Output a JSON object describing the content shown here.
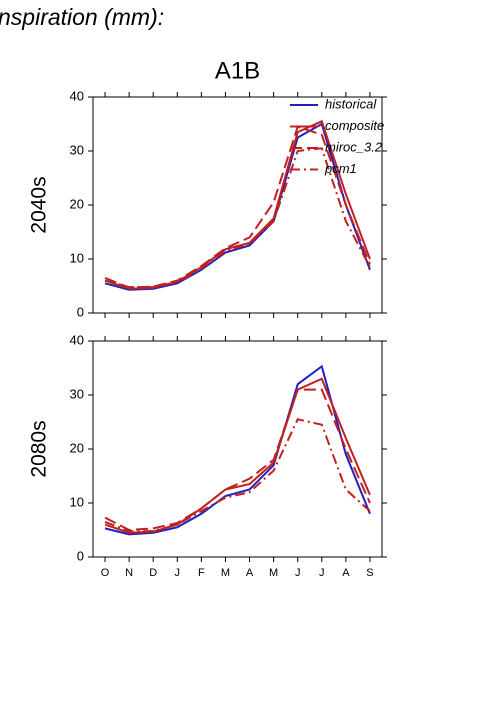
{
  "page_title": "nspiration (mm):",
  "chart_data": [
    {
      "type": "line",
      "title": "A1B",
      "ylabel": "2040s",
      "categories": [
        null,
        null,
        null,
        null,
        null,
        null,
        null,
        null,
        null,
        null,
        null,
        null
      ],
      "ylim": [
        0,
        40
      ],
      "yticks": [
        0,
        10,
        20,
        30,
        40
      ],
      "legend": "upper right",
      "series": [
        {
          "name": "historical",
          "color": "#2020c0",
          "linestyle": "solid",
          "values": [
            5.5,
            4.3,
            4.5,
            5.5,
            8,
            11.2,
            12.5,
            17,
            32.5,
            35,
            20,
            8
          ]
        },
        {
          "name": "composite",
          "color": "#c02020",
          "linestyle": "solid",
          "values": [
            6,
            4.5,
            4.7,
            5.8,
            8.5,
            11.8,
            13,
            17.5,
            33.5,
            35.5,
            22,
            10
          ]
        },
        {
          "name": "miroc_3.2",
          "color": "#c02020",
          "linestyle": "dashed",
          "values": [
            6.5,
            4.7,
            4.9,
            6,
            8.7,
            12,
            14,
            20.5,
            34.5,
            33,
            20,
            9
          ]
        },
        {
          "name": "pcm1",
          "color": "#c02020",
          "linestyle": "dashdot",
          "values": [
            6,
            4.8,
            4.8,
            5.7,
            8.2,
            11.5,
            12.8,
            17,
            30,
            30.5,
            17,
            8.5
          ]
        }
      ]
    },
    {
      "type": "line",
      "ylabel": "2080s",
      "categories": [
        "O",
        "N",
        "D",
        "J",
        "F",
        "M",
        "A",
        "M",
        "J",
        "J",
        "A",
        "S"
      ],
      "ylim": [
        0,
        40
      ],
      "yticks": [
        0,
        10,
        20,
        30,
        40
      ],
      "series": [
        {
          "name": "historical",
          "color": "#2020c0",
          "linestyle": "solid",
          "values": [
            5.3,
            4.2,
            4.5,
            5.5,
            8,
            11.3,
            12.5,
            17,
            32,
            35.3,
            19,
            8
          ]
        },
        {
          "name": "composite",
          "color": "#c02020",
          "linestyle": "solid",
          "values": [
            6,
            4.5,
            4.7,
            6,
            9,
            12.5,
            13.5,
            17.5,
            31,
            33,
            22,
            11.5
          ]
        },
        {
          "name": "miroc_3.2",
          "color": "#c02020",
          "linestyle": "dashed",
          "values": [
            7.3,
            5,
            5.3,
            6.3,
            9,
            12.5,
            14.5,
            18,
            31,
            31,
            20,
            10
          ]
        },
        {
          "name": "pcm1",
          "color": "#c02020",
          "linestyle": "dashdot",
          "values": [
            6.5,
            4.8,
            4.8,
            6,
            8.5,
            11,
            12,
            16,
            25.5,
            24.5,
            12.5,
            8.5
          ]
        }
      ]
    }
  ]
}
